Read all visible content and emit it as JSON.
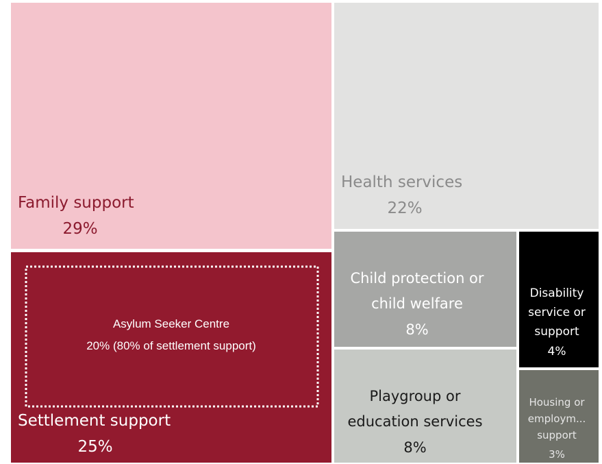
{
  "chart_data": {
    "type": "treemap",
    "title": "",
    "items": [
      {
        "label_lines": [
          "Family support"
        ],
        "value": 29,
        "value_label": "29%",
        "fill": "#f4c4cc",
        "text_color": "#8b1a2e"
      },
      {
        "label_lines": [
          "Health services"
        ],
        "value": 22,
        "value_label": "22%",
        "fill": "#e2e2e1",
        "text_color": "#8a8a8a"
      },
      {
        "label_lines": [
          "Settlement support"
        ],
        "value": 25,
        "value_label": "25%",
        "fill": "#921a2e",
        "text_color": "#ffffff",
        "sub_group": {
          "label_lines": [
            "Asylum Seeker Centre",
            "20% (80% of settlement support)"
          ],
          "value": 20,
          "share_of_parent": 80,
          "border_style": "dotted",
          "border_color": "#ffffff"
        }
      },
      {
        "label_lines": [
          "Child protection or",
          "child welfare"
        ],
        "value": 8,
        "value_label": "8%",
        "fill": "#a6a7a5",
        "text_color": "#ffffff"
      },
      {
        "label_lines": [
          "Playgroup or",
          "education services"
        ],
        "value": 8,
        "value_label": "8%",
        "fill": "#c6c9c5",
        "text_color": "#1a1a1a"
      },
      {
        "label_lines": [
          "Disability",
          "service or",
          "support"
        ],
        "value": 4,
        "value_label": "4%",
        "fill": "#000000",
        "text_color": "#ffffff"
      },
      {
        "label_lines": [
          "Housing or",
          "employm...",
          "support"
        ],
        "value": 3,
        "value_label": "3%",
        "fill": "#6f7169",
        "text_color": "#e6e6e6"
      }
    ]
  }
}
